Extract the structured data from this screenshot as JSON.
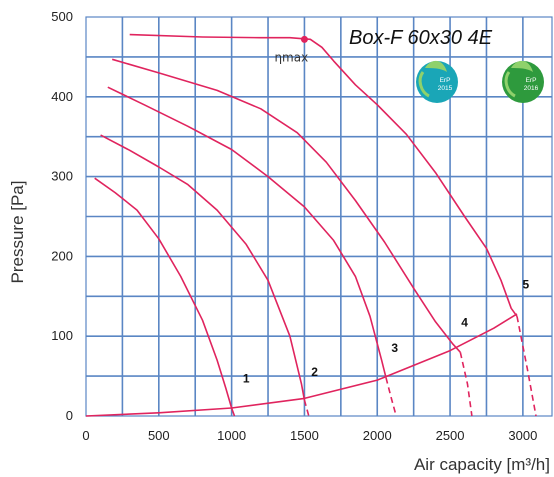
{
  "chart_data": {
    "type": "line",
    "title": "Box-F 60x30 4E",
    "xlabel": "Air capacity [m³/h]",
    "ylabel": "Pressure [Pa]",
    "xlim": [
      0,
      3200
    ],
    "ylim": [
      0,
      500
    ],
    "x_ticks": [
      0,
      500,
      1000,
      1500,
      2000,
      2500,
      3000
    ],
    "y_ticks": [
      0,
      100,
      200,
      300,
      400,
      500
    ],
    "x_tick_labels": [
      "0",
      "500",
      "1000",
      "1500",
      "2000",
      "2500",
      "3000"
    ],
    "y_tick_labels": [
      "0",
      "100",
      "200",
      "300",
      "400",
      "500"
    ],
    "grid": true,
    "curve_color": "#e0245e",
    "grid_color": "#5a86c4",
    "series": [
      {
        "name": "1",
        "points": [
          [
            60,
            298
          ],
          [
            200,
            280
          ],
          [
            350,
            258
          ],
          [
            500,
            222
          ],
          [
            650,
            175
          ],
          [
            800,
            120
          ],
          [
            900,
            70
          ],
          [
            960,
            35
          ],
          [
            1000,
            10
          ],
          [
            1020,
            0
          ]
        ],
        "dashed": []
      },
      {
        "name": "2",
        "points": [
          [
            100,
            352
          ],
          [
            300,
            333
          ],
          [
            500,
            312
          ],
          [
            700,
            290
          ],
          [
            900,
            258
          ],
          [
            1100,
            215
          ],
          [
            1250,
            170
          ],
          [
            1400,
            100
          ],
          [
            1480,
            40
          ],
          [
            1500,
            20
          ]
        ],
        "dashed": [
          [
            1500,
            20
          ],
          [
            1530,
            0
          ]
        ]
      },
      {
        "name": "3",
        "points": [
          [
            150,
            412
          ],
          [
            400,
            390
          ],
          [
            700,
            363
          ],
          [
            1000,
            334
          ],
          [
            1250,
            300
          ],
          [
            1500,
            262
          ],
          [
            1700,
            220
          ],
          [
            1850,
            175
          ],
          [
            1950,
            125
          ],
          [
            2030,
            70
          ],
          [
            2060,
            48
          ]
        ],
        "dashed": [
          [
            2060,
            48
          ],
          [
            2100,
            20
          ],
          [
            2130,
            0
          ]
        ]
      },
      {
        "name": "4",
        "points": [
          [
            180,
            447
          ],
          [
            500,
            430
          ],
          [
            900,
            408
          ],
          [
            1200,
            385
          ],
          [
            1450,
            355
          ],
          [
            1650,
            318
          ],
          [
            1850,
            270
          ],
          [
            2050,
            218
          ],
          [
            2250,
            160
          ],
          [
            2400,
            118
          ],
          [
            2520,
            90
          ],
          [
            2570,
            80
          ]
        ],
        "dashed": [
          [
            2570,
            80
          ],
          [
            2620,
            40
          ],
          [
            2650,
            0
          ]
        ]
      },
      {
        "name": "5",
        "points": [
          [
            300,
            478
          ],
          [
            800,
            475
          ],
          [
            1200,
            474
          ],
          [
            1400,
            474
          ],
          [
            1540,
            472
          ],
          [
            1620,
            462
          ],
          [
            1700,
            445
          ],
          [
            1850,
            415
          ],
          [
            2000,
            390
          ],
          [
            2200,
            353
          ],
          [
            2400,
            305
          ],
          [
            2600,
            250
          ],
          [
            2750,
            210
          ],
          [
            2850,
            170
          ],
          [
            2920,
            135
          ],
          [
            2960,
            125
          ]
        ],
        "dashed": [
          [
            2960,
            125
          ],
          [
            3030,
            60
          ],
          [
            3090,
            0
          ]
        ]
      },
      {
        "name": "system",
        "points": [
          [
            0,
            0
          ],
          [
            500,
            4
          ],
          [
            1000,
            10
          ],
          [
            1500,
            22
          ],
          [
            2000,
            45
          ],
          [
            2500,
            82
          ],
          [
            2800,
            110
          ],
          [
            2960,
            128
          ]
        ],
        "dashed": []
      }
    ],
    "curve_labels": [
      {
        "text": "1",
        "x": 1100,
        "y": 42
      },
      {
        "text": "2",
        "x": 1570,
        "y": 50
      },
      {
        "text": "3",
        "x": 2120,
        "y": 80
      },
      {
        "text": "4",
        "x": 2600,
        "y": 112
      },
      {
        "text": "5",
        "x": 3020,
        "y": 160
      }
    ],
    "annotations": {
      "eta_max_label": "ηmax",
      "eta_max_point": [
        1500,
        472
      ]
    }
  },
  "badges": [
    {
      "line1": "ErP",
      "line2": "2015",
      "color": "#1aa6b7"
    },
    {
      "line1": "ErP",
      "line2": "2016",
      "color": "#2e9a3d"
    }
  ]
}
